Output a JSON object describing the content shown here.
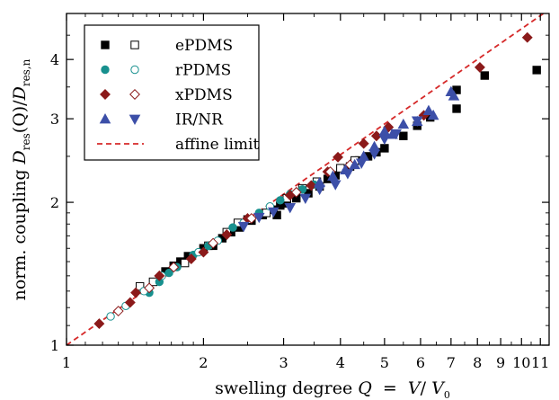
{
  "chart_data": {
    "type": "scatter",
    "x_scale": "log",
    "y_scale": "log",
    "xlim": [
      1,
      11.5
    ],
    "ylim": [
      1,
      5.0
    ],
    "xlabel": {
      "prefix": "swelling degree ",
      "symbol": "Q",
      "eq": "  =  ",
      "num": "V",
      "slash": "/ ",
      "den": "V",
      "den_sub": "0"
    },
    "ylabel": {
      "prefix": "norm. coupling ",
      "d1": "D",
      "d1_sub": "res",
      "mid": "(Q)/",
      "d2": "D",
      "d2_sub": "res,n"
    },
    "x_ticks": [
      {
        "value": 1,
        "label": "1"
      },
      {
        "value": 2,
        "label": "2"
      },
      {
        "value": 3,
        "label": "3"
      },
      {
        "value": 4,
        "label": "4"
      },
      {
        "value": 5,
        "label": "5"
      },
      {
        "value": 6,
        "label": "6"
      },
      {
        "value": 7,
        "label": "7"
      },
      {
        "value": 8,
        "label": "8"
      },
      {
        "value": 9,
        "label": "9"
      },
      {
        "value": 10,
        "label": "10"
      },
      {
        "value": 11,
        "label": "11"
      }
    ],
    "y_ticks": [
      {
        "value": 1,
        "label": "1"
      },
      {
        "value": 2,
        "label": "2"
      },
      {
        "value": 3,
        "label": "3"
      },
      {
        "value": 4,
        "label": "4"
      }
    ],
    "legend": {
      "placement": "top-left",
      "entries": [
        {
          "label": "ePDMS",
          "markers": [
            "square-filled",
            "square-open"
          ],
          "color": "#000000"
        },
        {
          "label": "rPDMS",
          "markers": [
            "circle-filled",
            "circle-open"
          ],
          "color": "#17908e"
        },
        {
          "label": "xPDMS",
          "markers": [
            "diamond-filled",
            "diamond-open"
          ],
          "color": "#8b1a1a"
        },
        {
          "label": "IR/NR",
          "markers": [
            "triangle-up",
            "triangle-down"
          ],
          "color": "#3c4fa8"
        },
        {
          "label": "affine limit",
          "markers": [
            "dash-line"
          ],
          "color": "#d62a2a"
        }
      ]
    },
    "affine_limit": {
      "name": "affine limit",
      "slope": 0.6667,
      "color": "#d62a2a"
    },
    "series": [
      {
        "name": "ePDMS",
        "marker": "square",
        "fill": "#000000",
        "stroke": "#000000",
        "points": [
          [
            1.65,
            1.43
          ],
          [
            1.72,
            1.47
          ],
          [
            1.78,
            1.5
          ],
          [
            1.85,
            1.54
          ],
          [
            2.0,
            1.6
          ],
          [
            2.1,
            1.62
          ],
          [
            2.2,
            1.68
          ],
          [
            2.3,
            1.73
          ],
          [
            2.4,
            1.77
          ],
          [
            2.55,
            1.83
          ],
          [
            2.7,
            1.88
          ],
          [
            2.85,
            1.93
          ],
          [
            2.95,
            1.97
          ],
          [
            2.9,
            1.88
          ],
          [
            3.05,
            1.99
          ],
          [
            3.2,
            2.04
          ],
          [
            3.4,
            2.09
          ],
          [
            3.6,
            2.16
          ],
          [
            3.75,
            2.24
          ],
          [
            3.9,
            2.28
          ],
          [
            4.2,
            2.38
          ],
          [
            4.4,
            2.45
          ],
          [
            4.6,
            2.5
          ],
          [
            4.8,
            2.55
          ],
          [
            5.0,
            2.6
          ],
          [
            5.5,
            2.76
          ],
          [
            5.9,
            2.9
          ],
          [
            6.3,
            3.02
          ],
          [
            7.2,
            3.45
          ],
          [
            7.2,
            3.15
          ],
          [
            8.3,
            3.7
          ],
          [
            10.8,
            3.8
          ]
        ]
      },
      {
        "name": "ePDMS",
        "marker": "square",
        "fill": "none",
        "stroke": "#000000",
        "points": [
          [
            1.45,
            1.33
          ],
          [
            1.55,
            1.36
          ],
          [
            1.82,
            1.49
          ],
          [
            2.05,
            1.62
          ],
          [
            2.25,
            1.73
          ],
          [
            2.38,
            1.81
          ],
          [
            2.5,
            1.84
          ],
          [
            2.75,
            1.9
          ],
          [
            3.05,
            2.04
          ],
          [
            3.3,
            2.14
          ],
          [
            3.55,
            2.21
          ],
          [
            4.0,
            2.36
          ],
          [
            4.3,
            2.45
          ]
        ]
      },
      {
        "name": "rPDMS",
        "marker": "circle",
        "fill": "#17908e",
        "stroke": "#17908e",
        "points": [
          [
            1.52,
            1.29
          ],
          [
            1.6,
            1.36
          ],
          [
            1.68,
            1.42
          ],
          [
            1.75,
            1.46
          ],
          [
            1.9,
            1.55
          ],
          [
            2.05,
            1.62
          ],
          [
            2.32,
            1.77
          ],
          [
            2.65,
            1.9
          ],
          [
            2.95,
            2.02
          ],
          [
            3.1,
            2.08
          ],
          [
            3.3,
            2.13
          ],
          [
            3.5,
            2.18
          ]
        ]
      },
      {
        "name": "rPDMS",
        "marker": "circle",
        "fill": "none",
        "stroke": "#17908e",
        "points": [
          [
            1.25,
            1.15
          ],
          [
            1.35,
            1.21
          ],
          [
            1.48,
            1.3
          ],
          [
            1.62,
            1.4
          ],
          [
            1.95,
            1.57
          ],
          [
            2.15,
            1.66
          ],
          [
            2.45,
            1.81
          ],
          [
            2.8,
            1.96
          ]
        ]
      },
      {
        "name": "xPDMS",
        "marker": "diamond",
        "fill": "#8b1a1a",
        "stroke": "#8b1a1a",
        "points": [
          [
            1.18,
            1.11
          ],
          [
            1.38,
            1.23
          ],
          [
            1.42,
            1.29
          ],
          [
            1.6,
            1.4
          ],
          [
            1.88,
            1.52
          ],
          [
            2.0,
            1.57
          ],
          [
            2.25,
            1.71
          ],
          [
            2.5,
            1.85
          ],
          [
            3.1,
            2.07
          ],
          [
            3.45,
            2.17
          ],
          [
            3.75,
            2.32
          ],
          [
            3.95,
            2.49
          ],
          [
            4.5,
            2.66
          ],
          [
            4.8,
            2.76
          ],
          [
            5.1,
            2.88
          ],
          [
            6.1,
            3.05
          ],
          [
            8.1,
            3.85
          ],
          [
            10.3,
            4.45
          ]
        ]
      },
      {
        "name": "xPDMS",
        "marker": "diamond",
        "fill": "none",
        "stroke": "#8b1a1a",
        "points": [
          [
            1.3,
            1.18
          ],
          [
            1.52,
            1.32
          ],
          [
            1.72,
            1.46
          ],
          [
            2.1,
            1.64
          ],
          [
            2.55,
            1.85
          ],
          [
            3.2,
            2.1
          ],
          [
            3.8,
            2.32
          ],
          [
            4.2,
            2.4
          ]
        ]
      },
      {
        "name": "IR/NR",
        "marker": "triangle-up",
        "fill": "#3c4fa8",
        "stroke": "#3c4fa8",
        "points": [
          [
            3.6,
            2.2
          ],
          [
            3.85,
            2.27
          ],
          [
            4.1,
            2.34
          ],
          [
            4.3,
            2.4
          ],
          [
            4.5,
            2.5
          ],
          [
            4.75,
            2.62
          ],
          [
            5.0,
            2.82
          ],
          [
            5.2,
            2.78
          ],
          [
            5.5,
            2.92
          ],
          [
            5.9,
            2.96
          ],
          [
            6.25,
            3.12
          ],
          [
            6.4,
            3.05
          ],
          [
            7.1,
            3.35
          ],
          [
            7.0,
            3.42
          ]
        ]
      },
      {
        "name": "IR/NR",
        "marker": "triangle-down",
        "fill": "#3c4fa8",
        "stroke": "#3c4fa8",
        "points": [
          [
            2.45,
            1.78
          ],
          [
            2.65,
            1.86
          ],
          [
            2.85,
            1.91
          ],
          [
            3.1,
            1.95
          ],
          [
            3.35,
            2.04
          ],
          [
            3.6,
            2.13
          ],
          [
            3.9,
            2.18
          ],
          [
            4.15,
            2.3
          ],
          [
            4.45,
            2.42
          ],
          [
            4.75,
            2.53
          ],
          [
            5.0,
            2.72
          ],
          [
            5.3,
            2.79
          ],
          [
            5.9,
            2.97
          ]
        ]
      }
    ]
  }
}
